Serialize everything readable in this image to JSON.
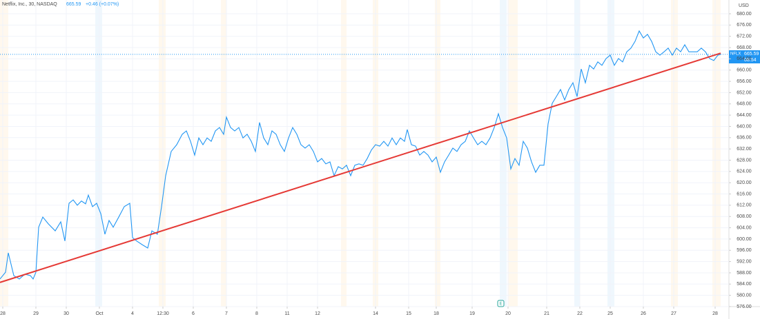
{
  "header": {
    "symbol": "Netflix, Inc., 30, NASDAQ",
    "price": 665.59,
    "change": "+0.46 (+0.07%)",
    "currency": "USD"
  },
  "price_tag": {
    "ticker": "NFLX",
    "countdown": "08:54"
  },
  "earnings_marker": "E",
  "chart_data": {
    "type": "line",
    "current_price": 665.59,
    "xlim": [
      0,
      264
    ],
    "xticks": [
      {
        "value": 1,
        "label": "28"
      },
      {
        "value": 13,
        "label": "29"
      },
      {
        "value": 24,
        "label": "30"
      },
      {
        "value": 36,
        "label": "Oct"
      },
      {
        "value": 48,
        "label": "4"
      },
      {
        "value": 59,
        "label": "12:30"
      },
      {
        "value": 70,
        "label": "6"
      },
      {
        "value": 82,
        "label": "7"
      },
      {
        "value": 93,
        "label": "8"
      },
      {
        "value": 104,
        "label": "11"
      },
      {
        "value": 115,
        "label": "12"
      },
      {
        "value": 136,
        "label": "14"
      },
      {
        "value": 148,
        "label": "15"
      },
      {
        "value": 158,
        "label": "18"
      },
      {
        "value": 171,
        "label": "19"
      },
      {
        "value": 184,
        "label": "20"
      },
      {
        "value": 198,
        "label": "21"
      },
      {
        "value": 210,
        "label": "22"
      },
      {
        "value": 221,
        "label": "25"
      },
      {
        "value": 233,
        "label": "26"
      },
      {
        "value": 244,
        "label": "27"
      },
      {
        "value": 259,
        "label": "28"
      }
    ],
    "ylim": [
      576,
      680
    ],
    "yticks": [
      {
        "value": 576,
        "label": "576.00"
      },
      {
        "value": 580,
        "label": "580.00"
      },
      {
        "value": 584,
        "label": "584.00"
      },
      {
        "value": 588,
        "label": "588.00"
      },
      {
        "value": 592,
        "label": "592.00"
      },
      {
        "value": 596,
        "label": "596.00"
      },
      {
        "value": 600,
        "label": "600.00"
      },
      {
        "value": 604,
        "label": "604.00"
      },
      {
        "value": 608,
        "label": "608.00"
      },
      {
        "value": 612,
        "label": "612.00"
      },
      {
        "value": 616,
        "label": "616.00"
      },
      {
        "value": 620,
        "label": "620.00"
      },
      {
        "value": 624,
        "label": "624.00"
      },
      {
        "value": 628,
        "label": "628.00"
      },
      {
        "value": 632,
        "label": "632.00"
      },
      {
        "value": 636,
        "label": "636.00"
      },
      {
        "value": 640,
        "label": "640.00"
      },
      {
        "value": 644,
        "label": "644.00"
      },
      {
        "value": 648,
        "label": "648.00"
      },
      {
        "value": 652,
        "label": "652.00"
      },
      {
        "value": 656,
        "label": "656.00"
      },
      {
        "value": 660,
        "label": "660.00"
      },
      {
        "value": 664,
        "label": "664.00"
      },
      {
        "value": 668,
        "label": "668.00"
      },
      {
        "value": 672,
        "label": "672.00"
      },
      {
        "value": 676,
        "label": "676.00"
      },
      {
        "value": 680,
        "label": "680.00"
      }
    ],
    "grid": true,
    "series": [
      {
        "color": "#2196f3",
        "x": [
          0,
          2,
          3,
          5,
          7,
          9,
          11,
          12,
          13,
          14,
          15.5,
          17.5,
          20,
          22,
          23.5,
          25,
          26.5,
          28,
          29.5,
          31,
          32,
          33.5,
          35,
          36.5,
          38,
          39.5,
          41,
          43,
          45,
          47,
          48,
          49.5,
          51.5,
          53.5,
          55,
          57,
          58.5,
          60,
          62,
          64,
          66,
          67.5,
          69,
          70.5,
          72,
          73.5,
          75,
          76.5,
          78,
          79.5,
          81,
          82,
          83.5,
          85,
          86.5,
          88,
          89.5,
          91,
          92.5,
          94,
          95.5,
          97,
          98.5,
          100,
          101.5,
          103,
          104.5,
          106,
          107.5,
          109,
          110.5,
          112,
          113.5,
          115,
          116.5,
          118,
          119.5,
          121,
          122.5,
          124,
          125.5,
          127,
          128.5,
          130,
          131.5,
          133,
          134.5,
          136,
          137.5,
          139,
          140.5,
          142,
          143.5,
          145,
          146.5,
          147.5,
          149,
          150.5,
          152,
          153.5,
          155,
          156.5,
          158,
          159.5,
          161,
          162.5,
          164,
          165.5,
          167,
          168.5,
          170,
          171.5,
          173,
          174.5,
          176,
          177.5,
          179,
          180.5,
          182,
          183.5,
          185,
          186.5,
          188,
          189.5,
          191,
          192.5,
          194,
          195.5,
          197,
          198.5,
          200,
          201.5,
          203,
          204.5,
          206,
          207.5,
          209,
          210.5,
          212,
          213.5,
          215,
          216.5,
          218,
          219.5,
          221,
          222.5,
          224,
          225.5,
          227,
          228.5,
          230,
          231.5,
          233,
          234.5,
          236,
          237.5,
          239,
          240.5,
          242,
          243.5,
          245,
          246.5,
          248,
          249.5,
          251,
          252.5,
          254,
          255.5,
          257,
          258.5,
          260,
          261
        ],
        "values": [
          585.8,
          588.2,
          595.1,
          587.0,
          585.8,
          587.5,
          587.0,
          585.8,
          588.2,
          604.2,
          607.8,
          605.4,
          602.9,
          606.1,
          599.3,
          612.7,
          613.9,
          612.0,
          613.5,
          612.5,
          615.6,
          611.5,
          612.7,
          609.0,
          601.7,
          606.6,
          604.2,
          607.8,
          611.5,
          612.7,
          600.5,
          599.3,
          598.0,
          596.8,
          602.9,
          601.7,
          611.5,
          622.5,
          631.1,
          633.5,
          637.2,
          638.4,
          634.7,
          629.8,
          635.9,
          633.5,
          635.9,
          634.7,
          638.4,
          639.6,
          637.2,
          643.3,
          639.6,
          638.4,
          639.6,
          635.9,
          637.2,
          634.7,
          631.1,
          641.4,
          635.9,
          633.5,
          638.4,
          637.2,
          633.5,
          631.1,
          635.9,
          639.6,
          637.2,
          633.5,
          632.3,
          633.5,
          631.1,
          627.4,
          628.6,
          626.7,
          627.4,
          622.5,
          625.7,
          624.9,
          626.2,
          622.5,
          626.2,
          626.7,
          626.2,
          628.6,
          631.6,
          633.5,
          633.0,
          634.7,
          633.0,
          635.9,
          633.5,
          635.9,
          634.7,
          638.9,
          633.5,
          633.0,
          629.8,
          631.1,
          629.8,
          627.4,
          629.1,
          623.7,
          627.4,
          629.8,
          632.3,
          631.1,
          633.5,
          634.7,
          638.4,
          635.9,
          633.5,
          634.7,
          633.5,
          635.9,
          639.6,
          644.5,
          639.6,
          635.9,
          624.9,
          628.6,
          626.2,
          634.7,
          632.3,
          627.4,
          623.7,
          626.2,
          626.2,
          640.9,
          648.2,
          650.6,
          653.1,
          649.4,
          653.1,
          655.5,
          650.6,
          660.4,
          655.5,
          661.7,
          660.4,
          662.9,
          661.7,
          664.1,
          665.3,
          661.7,
          664.1,
          662.9,
          666.5,
          667.8,
          670.2,
          673.9,
          671.4,
          672.7,
          670.2,
          666.5,
          665.3,
          666.5,
          667.8,
          665.3,
          667.8,
          666.5,
          669.0,
          666.5,
          666.5,
          666.5,
          667.8,
          666.5,
          664.1,
          663.4,
          665.3,
          665.59
        ]
      }
    ],
    "trendline": {
      "color": "#e53935",
      "x": [
        0,
        261
      ],
      "values": [
        584.6,
        666.0
      ]
    }
  }
}
